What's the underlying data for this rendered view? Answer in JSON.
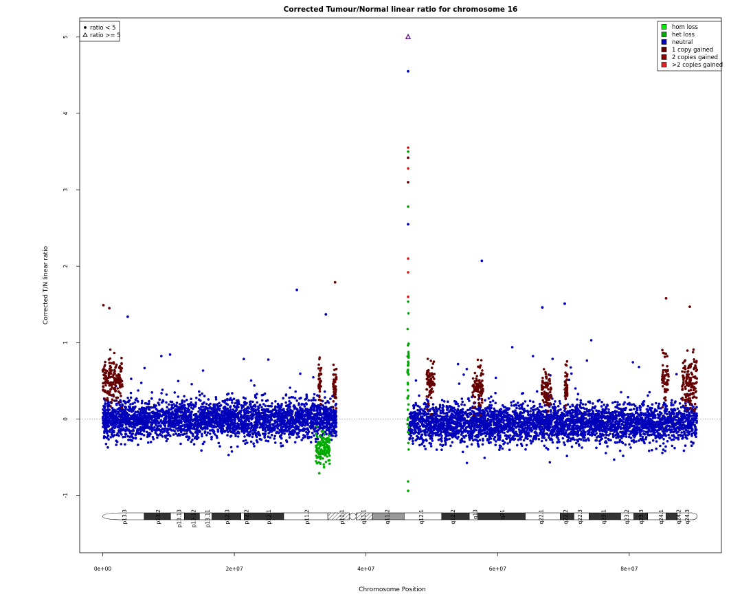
{
  "chart_data": {
    "type": "scatter",
    "title": "Corrected Tumour/Normal linear ratio for chromosome  16",
    "xlabel": "Chromosome Position",
    "ylabel": "Corrected T/N linear ratio",
    "xlim": [
      -3500000,
      94000000
    ],
    "ylim": [
      -1.75,
      5.25
    ],
    "x_ticks": [
      0,
      20000000,
      40000000,
      60000000,
      80000000
    ],
    "x_tick_labels": [
      "0e+00",
      "2e+07",
      "4e+07",
      "6e+07",
      "8e+07"
    ],
    "y_ticks": [
      -1,
      0,
      1,
      2,
      3,
      4,
      5
    ],
    "y_tick_labels": [
      "-1",
      "0",
      "1",
      "2",
      "3",
      "4",
      "5"
    ],
    "baseline": 0,
    "grid": false,
    "legend_shape": {
      "position": "top-left",
      "entries": [
        {
          "label": "ratio < 5",
          "marker": "filled-circle"
        },
        {
          "label": "ratio >= 5",
          "marker": "open-triangle"
        }
      ]
    },
    "legend_color": {
      "position": "top-right",
      "entries": [
        {
          "label": "hom loss",
          "color": "#00ee00"
        },
        {
          "label": "het loss",
          "color": "#00aa00"
        },
        {
          "label": "neutral",
          "color": "#0000bb"
        },
        {
          "label": "1 copy gained",
          "color": "#660000"
        },
        {
          "label": "2 copies gained",
          "color": "#880000"
        },
        {
          "label": ">2 copies gained",
          "color": "#dd2222"
        }
      ]
    },
    "series": [
      {
        "name": "neutral",
        "color": "#0000bb",
        "regions": [
          {
            "start": 0,
            "end": 35500000,
            "mean": 0,
            "spread": 0.3
          },
          {
            "start": 46500000,
            "end": 90300000,
            "mean": -0.05,
            "spread": 0.3
          }
        ],
        "outliers": [
          [
            3800000,
            1.34
          ],
          [
            29500000,
            1.69
          ],
          [
            33900000,
            1.37
          ],
          [
            57600000,
            2.07
          ],
          [
            66800000,
            1.46
          ],
          [
            70200000,
            1.51
          ],
          [
            46400000,
            4.55
          ],
          [
            46400000,
            2.55
          ]
        ]
      },
      {
        "name": "1 copy gained",
        "color": "#660000",
        "regions": [
          {
            "start": 0,
            "end": 3000000,
            "mean": 0.5,
            "spread": 0.35
          },
          {
            "start": 32800000,
            "end": 33200000,
            "mean": 0.5,
            "spread": 0.3
          },
          {
            "start": 35000000,
            "end": 35500000,
            "mean": 0.4,
            "spread": 0.35
          },
          {
            "start": 49200000,
            "end": 50400000,
            "mean": 0.5,
            "spread": 0.3
          },
          {
            "start": 56200000,
            "end": 57800000,
            "mean": 0.4,
            "spread": 0.3
          },
          {
            "start": 66700000,
            "end": 68200000,
            "mean": 0.35,
            "spread": 0.3
          },
          {
            "start": 70200000,
            "end": 70600000,
            "mean": 0.4,
            "spread": 0.3
          },
          {
            "start": 85000000,
            "end": 86000000,
            "mean": 0.55,
            "spread": 0.4
          },
          {
            "start": 88000000,
            "end": 90300000,
            "mean": 0.5,
            "spread": 0.4
          }
        ],
        "outliers": [
          [
            100000,
            1.49
          ],
          [
            1000000,
            1.45
          ],
          [
            85600000,
            1.58
          ],
          [
            89200000,
            1.47
          ],
          [
            35300000,
            1.79
          ],
          [
            46400000,
            3.1
          ],
          [
            46400000,
            3.42
          ]
        ]
      },
      {
        "name": "het loss",
        "color": "#00aa00",
        "regions": [
          {
            "start": 32400000,
            "end": 34500000,
            "mean": -0.4,
            "spread": 0.25
          },
          {
            "start": 46300000,
            "end": 46500000,
            "mean": 0.5,
            "spread": 1.2
          }
        ],
        "outliers": [
          [
            46400000,
            2.78
          ],
          [
            46400000,
            3.5
          ],
          [
            46400000,
            -0.94
          ],
          [
            32900000,
            -0.71
          ]
        ]
      },
      {
        "name": ">2 copies gained",
        "color": "#dd2222",
        "regions": [],
        "outliers": [
          [
            46400000,
            3.55
          ],
          [
            46400000,
            3.28
          ],
          [
            46400000,
            1.92
          ],
          [
            46400000,
            2.1
          ],
          [
            46400000,
            1.6
          ]
        ]
      },
      {
        "name": "ratio >= 5",
        "color": "#550088",
        "regions": [],
        "outliers": [
          [
            46400000,
            5.0
          ]
        ]
      }
    ],
    "ideogram": {
      "band_labels": [
        "p13.3",
        "p13.2",
        "p13.13",
        "p13.12",
        "p13.11",
        "p12.3",
        "p12.2",
        "p12.1",
        "p11.2",
        "p11.1",
        "q11.1",
        "q11.2",
        "q12.1",
        "q12.2",
        "q13",
        "q21",
        "q22.1",
        "q22.2",
        "q22.3",
        "q23.1",
        "q23.2",
        "q23.3",
        "q24.1",
        "q24.2",
        "q24.3"
      ],
      "band_label_positions": [
        3300000,
        8400000,
        11600000,
        13800000,
        15900000,
        18900000,
        21800000,
        25200000,
        31000000,
        36300000,
        39600000,
        43200000,
        48400000,
        53200000,
        56600000,
        60700000,
        66600000,
        70300000,
        72500000,
        76100000,
        79600000,
        81800000,
        84800000,
        87500000,
        88800000
      ],
      "bands": [
        {
          "start": 0,
          "end": 6300000,
          "stain": "gneg"
        },
        {
          "start": 6300000,
          "end": 10300000,
          "stain": "gpos"
        },
        {
          "start": 10300000,
          "end": 12400000,
          "stain": "gneg"
        },
        {
          "start": 12400000,
          "end": 14700000,
          "stain": "gpos"
        },
        {
          "start": 14700000,
          "end": 16600000,
          "stain": "gneg"
        },
        {
          "start": 16600000,
          "end": 21000000,
          "stain": "gpos"
        },
        {
          "start": 21000000,
          "end": 21500000,
          "stain": "gneg"
        },
        {
          "start": 21500000,
          "end": 27500000,
          "stain": "gpos"
        },
        {
          "start": 27500000,
          "end": 34200000,
          "stain": "gneg"
        },
        {
          "start": 34200000,
          "end": 37500000,
          "stain": "gvar"
        },
        {
          "start": 37500000,
          "end": 38500000,
          "stain": "acen"
        },
        {
          "start": 38500000,
          "end": 41000000,
          "stain": "gvar"
        },
        {
          "start": 41000000,
          "end": 45800000,
          "stain": "heter"
        },
        {
          "start": 45800000,
          "end": 51500000,
          "stain": "gneg"
        },
        {
          "start": 51500000,
          "end": 55700000,
          "stain": "gpos"
        },
        {
          "start": 55700000,
          "end": 57000000,
          "stain": "gneg"
        },
        {
          "start": 57000000,
          "end": 64200000,
          "stain": "gpos"
        },
        {
          "start": 64200000,
          "end": 69500000,
          "stain": "gneg"
        },
        {
          "start": 69500000,
          "end": 71600000,
          "stain": "gpos"
        },
        {
          "start": 71600000,
          "end": 73900000,
          "stain": "gneg"
        },
        {
          "start": 73900000,
          "end": 78700000,
          "stain": "gpos"
        },
        {
          "start": 78700000,
          "end": 80700000,
          "stain": "gneg"
        },
        {
          "start": 80700000,
          "end": 82800000,
          "stain": "gpos"
        },
        {
          "start": 82800000,
          "end": 85600000,
          "stain": "gneg"
        },
        {
          "start": 85600000,
          "end": 87300000,
          "stain": "gpos"
        },
        {
          "start": 87300000,
          "end": 90300000,
          "stain": "gneg"
        }
      ]
    }
  }
}
